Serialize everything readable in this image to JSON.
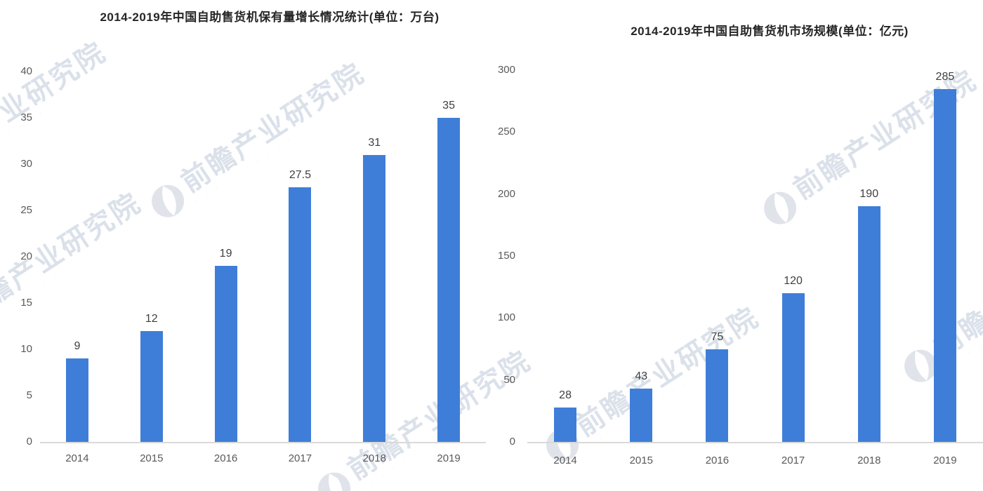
{
  "watermark": {
    "text": "前瞻产业研究院",
    "subtext": "· · · · · · · · · · ·",
    "text_color": "#c9d2e0",
    "logo_color": "#d6dbe4"
  },
  "colors": {
    "bar": "#3f7ed8",
    "axis_line": "#d9d9d9",
    "tick_label": "#595959",
    "value_label": "#3f3f3f",
    "title": "#262626"
  },
  "chart_data": [
    {
      "type": "bar",
      "title": "2014-2019年中国自助售货机保有量增长情况统计(单位：万台)",
      "categories": [
        "2014",
        "2015",
        "2016",
        "2017",
        "2018",
        "2019"
      ],
      "values": [
        9,
        12,
        19,
        27.5,
        31,
        35
      ],
      "ylim": [
        0,
        40
      ],
      "yticks": [
        0,
        5,
        10,
        15,
        20,
        25,
        30,
        35,
        40
      ],
      "xlabel": "",
      "ylabel": "",
      "grid": false,
      "legend": null,
      "bar_color": "#3f7ed8"
    },
    {
      "type": "bar",
      "title": "2014-2019年中国自助售货机市场规模(单位：亿元)",
      "categories": [
        "2014",
        "2015",
        "2016",
        "2017",
        "2018",
        "2019"
      ],
      "values": [
        28,
        43,
        75,
        120,
        190,
        285
      ],
      "ylim": [
        0,
        300
      ],
      "yticks": [
        0,
        50,
        100,
        150,
        200,
        250,
        300
      ],
      "xlabel": "",
      "ylabel": "",
      "grid": false,
      "legend": null,
      "bar_color": "#3f7ed8"
    }
  ]
}
